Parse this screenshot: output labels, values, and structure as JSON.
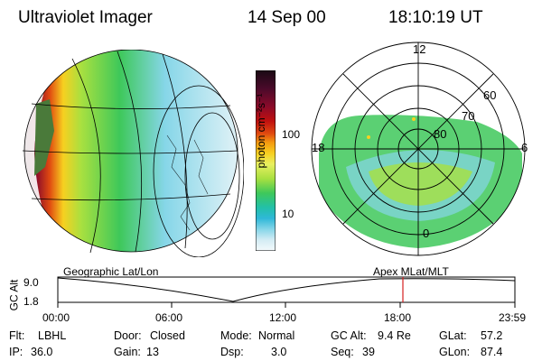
{
  "header": {
    "instrument": "Ultraviolet Imager",
    "date": "14 Sep 00",
    "time": "18:10:19 UT"
  },
  "colorbar": {
    "unit": "photon cm⁻²s⁻¹",
    "ticks": [
      "100",
      "10"
    ],
    "colors": [
      "#1a0a14",
      "#4a0a2a",
      "#8a0a2a",
      "#c0100f",
      "#e04a10",
      "#f49a10",
      "#f7d020",
      "#e8f060",
      "#a8e040",
      "#3ec85a",
      "#22c0a8",
      "#2fb8d8",
      "#86d6e8",
      "#d4ecf4",
      "#f4fafc"
    ]
  },
  "left_panel": {
    "label": "Geographic Lat/Lon"
  },
  "right_panel": {
    "label": "Apex  MLat/MLT",
    "mlt_labels": {
      "top": "12",
      "left": "18",
      "right": "6",
      "bottom": "0"
    },
    "lat_labels": [
      "60",
      "70",
      "80"
    ]
  },
  "timeline": {
    "axis_title": "GC Alt",
    "y_labels": [
      "9.0",
      "1.8"
    ],
    "x_labels": [
      "00:00",
      "06:00",
      "12:00",
      "18:00",
      "23:59"
    ],
    "marker_color": "#d42020"
  },
  "stats": {
    "flt_label": "Flt:",
    "flt_value": "LBHL",
    "door_label": "Door:",
    "door_value": "Closed",
    "mode_label": "Mode:",
    "mode_value": "Normal",
    "gcalt_label": "GC Alt:",
    "gcalt_value": "9.4 Re",
    "glat_label": "GLat:",
    "glat_value": "57.2",
    "ip_label": "IP:",
    "ip_value": "36.0",
    "gain_label": "Gain:",
    "gain_value": "13",
    "dsp_label": "Dsp:",
    "dsp_value": "3.0",
    "seq_label": "Seq:",
    "seq_value": "39",
    "glon_label": "GLon:",
    "glon_value": "87.4"
  }
}
